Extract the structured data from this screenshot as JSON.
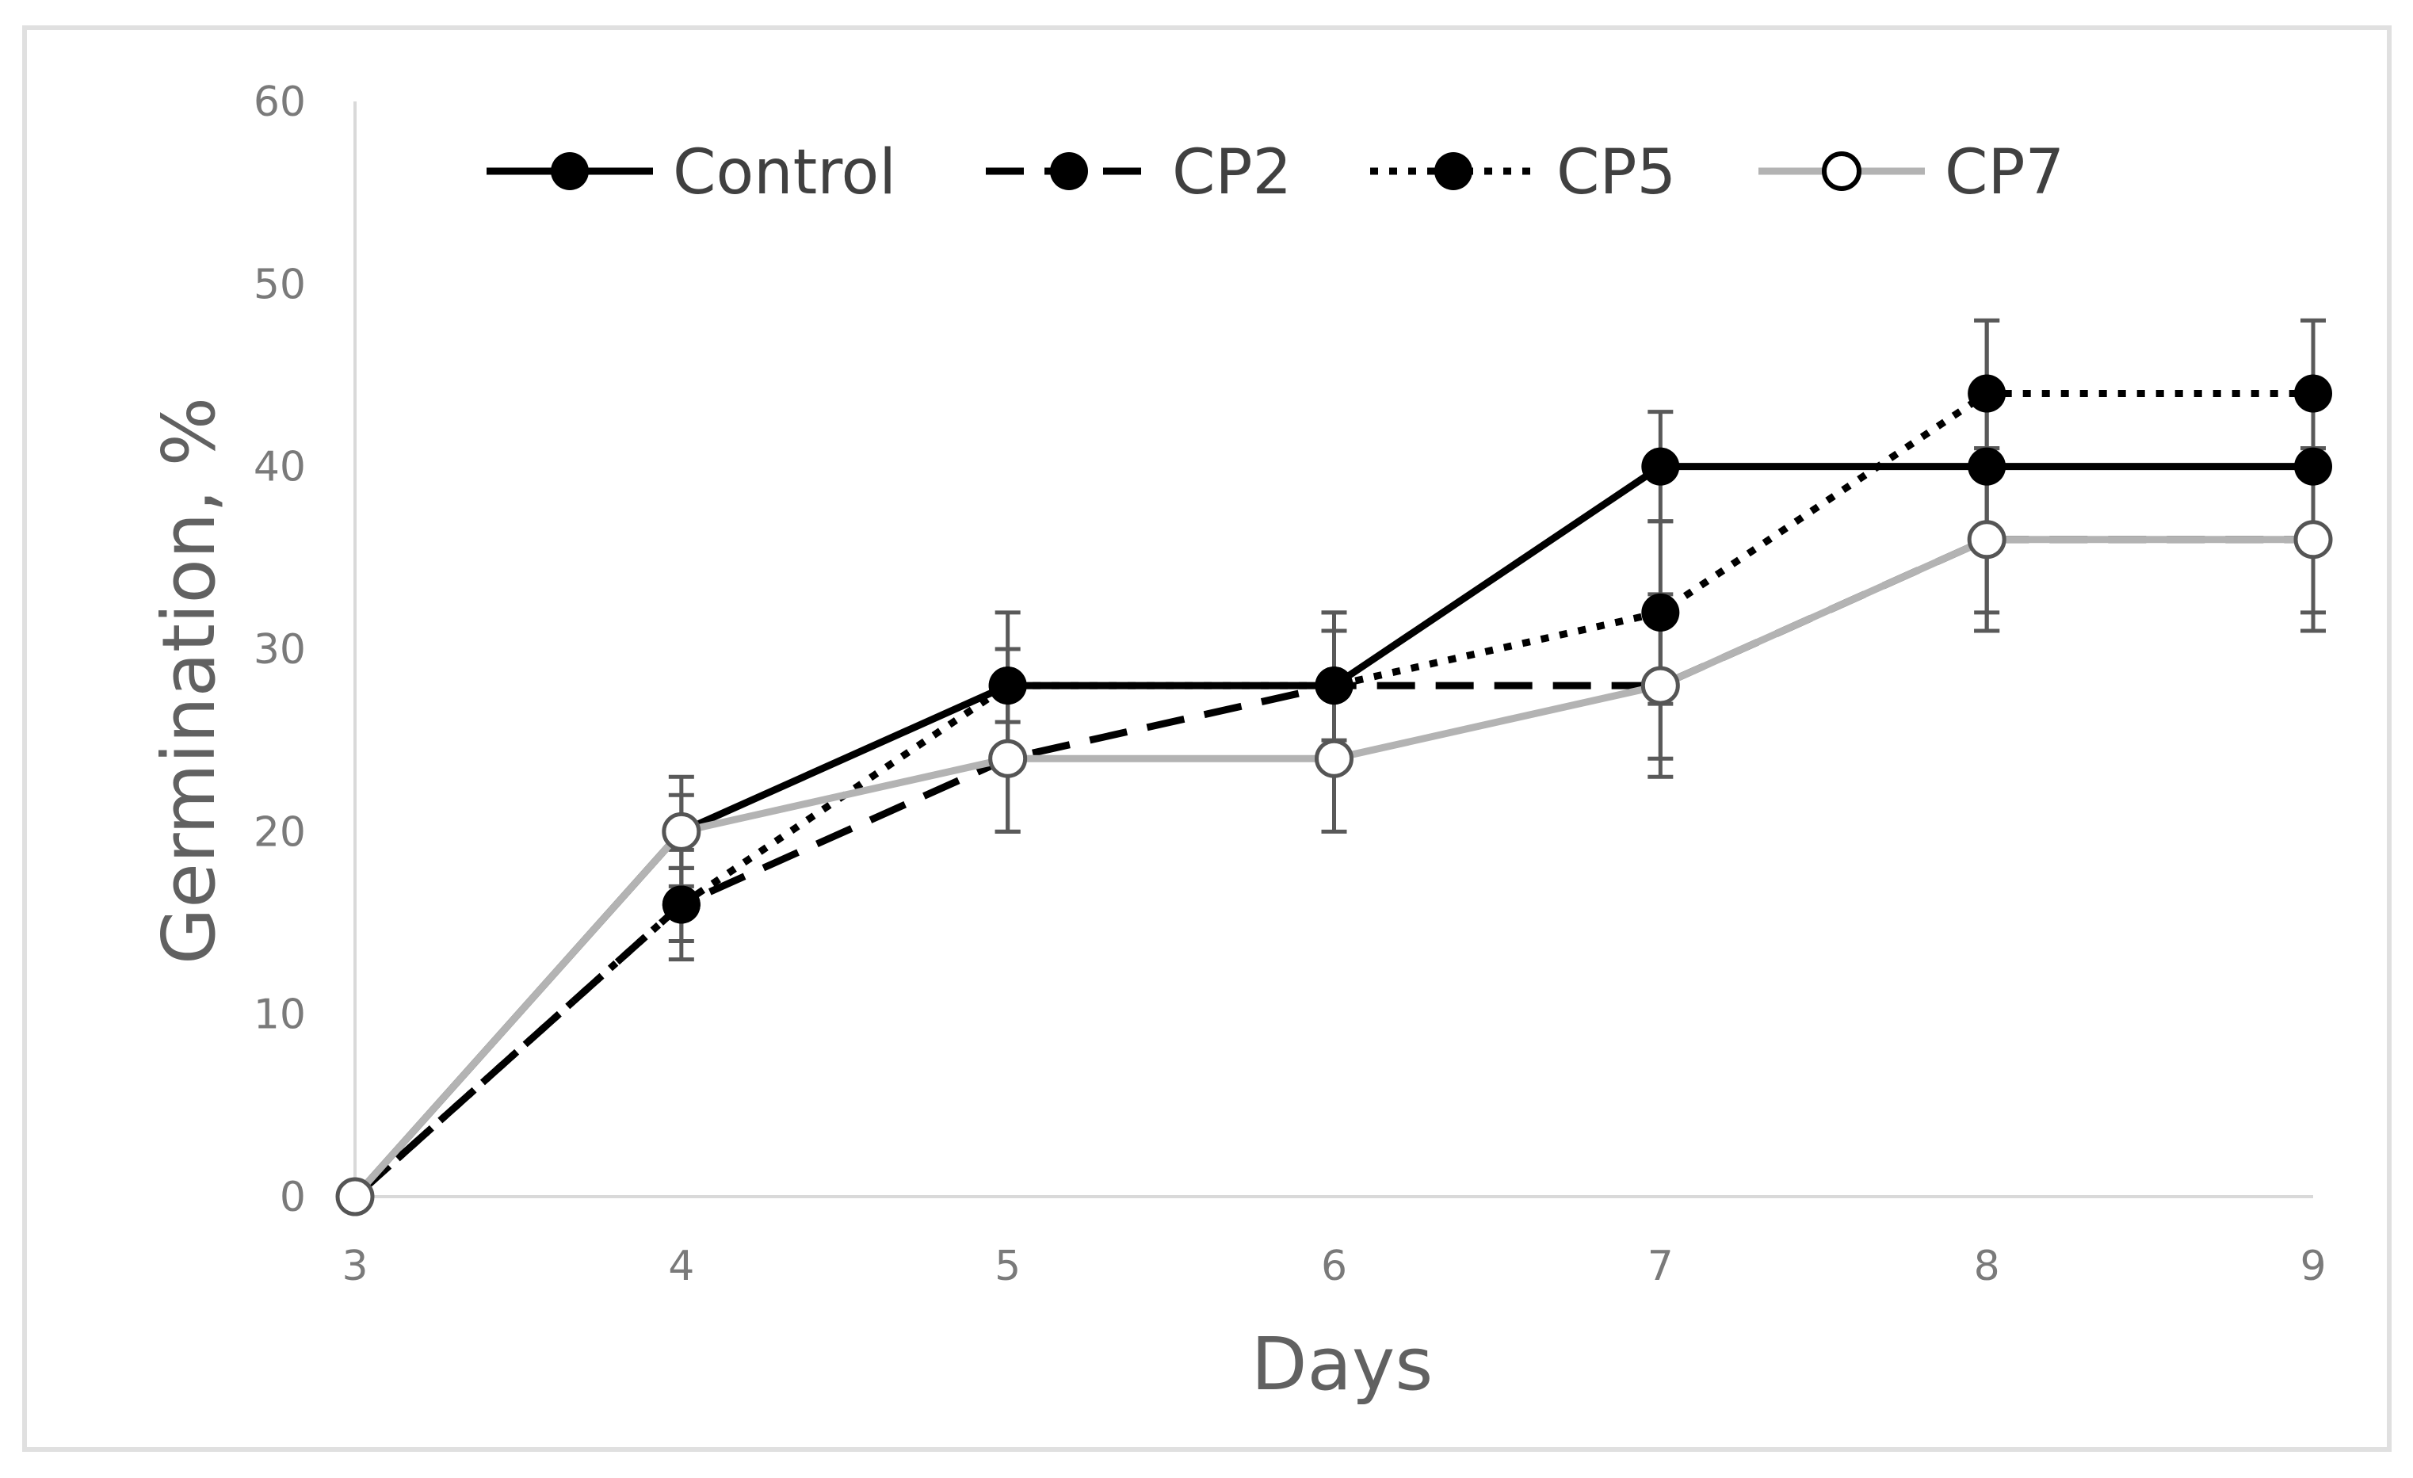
{
  "chart_data": {
    "type": "line",
    "title": "",
    "xlabel": "Days",
    "ylabel": "Germination, %",
    "x": [
      3,
      4,
      5,
      6,
      7,
      8,
      9
    ],
    "xlim": [
      3,
      9
    ],
    "ylim": [
      0,
      60
    ],
    "yticks": [
      0,
      10,
      20,
      30,
      40,
      50,
      60
    ],
    "xticks": [
      3,
      4,
      5,
      6,
      7,
      8,
      9
    ],
    "grid": false,
    "legend_position": "top",
    "series": [
      {
        "name": "Control",
        "values": [
          0,
          20,
          28,
          28,
          40,
          40,
          40
        ],
        "errors": [
          0,
          3,
          4,
          4,
          3,
          8,
          8
        ],
        "color": "#000000",
        "line_style": "solid",
        "marker": "filled-circle"
      },
      {
        "name": "CP2",
        "values": [
          0,
          16,
          24,
          28,
          28,
          36,
          36
        ],
        "errors": [
          0,
          3,
          4,
          4,
          5,
          5,
          5
        ],
        "color": "#000000",
        "line_style": "dashed",
        "marker": "filled-circle"
      },
      {
        "name": "CP5",
        "values": [
          0,
          16,
          28,
          28,
          32,
          44,
          44
        ],
        "errors": [
          0,
          2,
          2,
          3,
          5,
          4,
          4
        ],
        "color": "#000000",
        "line_style": "dotted",
        "marker": "filled-circle"
      },
      {
        "name": "CP7",
        "values": [
          0,
          20,
          24,
          24,
          28,
          36,
          36
        ],
        "errors": [
          0,
          2,
          4,
          4,
          4,
          5,
          5
        ],
        "color": "#a6a6a6",
        "line_style": "solid",
        "marker": "open-circle"
      }
    ]
  }
}
